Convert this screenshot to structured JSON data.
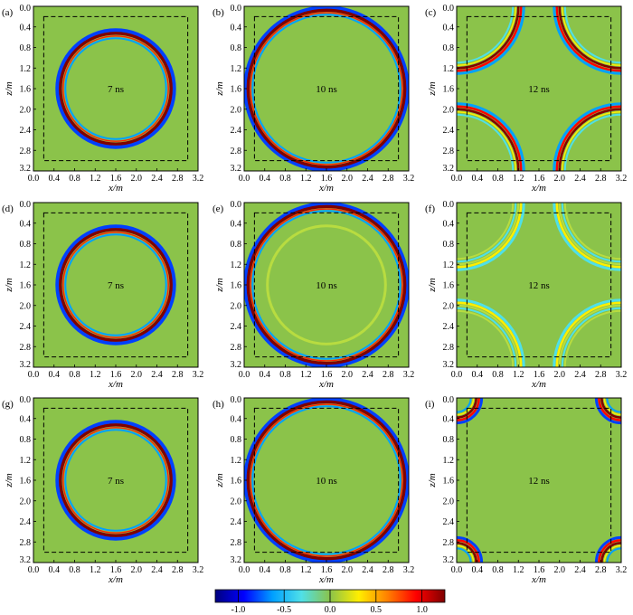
{
  "chart_data": {
    "type": "heatmap",
    "layout": {
      "rows": 3,
      "cols": 3
    },
    "panels": [
      {
        "id": "(a)",
        "time_label": "7 ns",
        "row": 0,
        "col": 0,
        "feature": "ring",
        "radius_m": 1.05
      },
      {
        "id": "(b)",
        "time_label": "10 ns",
        "row": 0,
        "col": 1,
        "feature": "ring_reflect",
        "radius_m": 1.5
      },
      {
        "id": "(c)",
        "time_label": "12 ns",
        "row": 0,
        "col": 2,
        "feature": "corner_arcs_strong",
        "radius_m": 1.2
      },
      {
        "id": "(d)",
        "time_label": "7 ns",
        "row": 1,
        "col": 0,
        "feature": "ring",
        "radius_m": 1.05
      },
      {
        "id": "(e)",
        "time_label": "10 ns",
        "row": 1,
        "col": 1,
        "feature": "ring_reflect",
        "radius_m": 1.5
      },
      {
        "id": "(f)",
        "time_label": "12 ns",
        "row": 1,
        "col": 2,
        "feature": "corner_arcs_weak",
        "radius_m": 1.2
      },
      {
        "id": "(g)",
        "time_label": "7 ns",
        "row": 2,
        "col": 0,
        "feature": "ring",
        "radius_m": 1.05
      },
      {
        "id": "(h)",
        "time_label": "10 ns",
        "row": 2,
        "col": 1,
        "feature": "ring_reflect",
        "radius_m": 1.5
      },
      {
        "id": "(i)",
        "time_label": "12 ns",
        "row": 2,
        "col": 2,
        "feature": "corner_arcs_small",
        "radius_m": 1.2
      }
    ],
    "xlabel": "x/m",
    "ylabel": "z/m",
    "xlim": [
      0.0,
      3.2
    ],
    "ylim": [
      3.2,
      0.0
    ],
    "x_ticks": [
      "0.0",
      "0.4",
      "0.8",
      "1.2",
      "1.6",
      "2.0",
      "2.4",
      "2.8",
      "3.2"
    ],
    "y_ticks": [
      "0.0",
      "0.4",
      "0.8",
      "1.2",
      "1.6",
      "2.0",
      "2.4",
      "2.8",
      "3.2"
    ],
    "y_tick_values": [
      0.4,
      0.8,
      1.2,
      1.6,
      2.0,
      2.4,
      2.8,
      3.2
    ],
    "y_top_tick_label": "0.0",
    "source_center_m": [
      1.6,
      1.6
    ],
    "dashed_box_m": {
      "x0": 0.2,
      "x1": 3.0,
      "z0": 0.2,
      "z1": 3.0
    },
    "colorbar": {
      "range": [
        -1.25,
        1.25
      ],
      "ticks": [
        -1.0,
        -0.5,
        0.0,
        0.5,
        1.0
      ],
      "tick_labels": [
        "-1.0",
        "-0.5",
        "0.0",
        "0.5",
        "1.0"
      ],
      "colormap": [
        "#00007f",
        "#0000ff",
        "#00a0ff",
        "#4fe0e8",
        "#8bc34a",
        "#ffee00",
        "#ff8000",
        "#ff0000",
        "#7f0000"
      ]
    },
    "background_color": "#8bc34a"
  }
}
